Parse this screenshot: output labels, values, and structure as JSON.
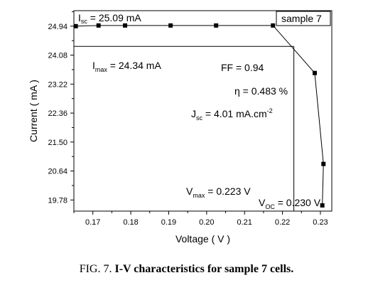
{
  "chart_data": {
    "type": "line",
    "xlabel": "Voltage ( V )",
    "ylabel": "Current ( mA )",
    "xlim": [
      0.165,
      0.233
    ],
    "ylim": [
      19.45,
      25.4
    ],
    "xticks": [
      0.17,
      0.18,
      0.19,
      0.2,
      0.21,
      0.22,
      0.23
    ],
    "xtick_labels": [
      "0.17",
      "0.18",
      "0.19",
      "0.20",
      "0.21",
      "0.22",
      "0.23"
    ],
    "yticks": [
      19.78,
      20.64,
      21.5,
      22.36,
      23.22,
      24.08,
      24.94
    ],
    "ytick_labels": [
      "19.78",
      "20.64",
      "21.50",
      "22.36",
      "23.22",
      "24.08",
      "24.94"
    ],
    "series": [
      {
        "x": [
          0.1655,
          0.1715,
          0.1785,
          0.1905,
          0.2025,
          0.2175,
          0.2285,
          0.2308,
          0.2305
        ],
        "y": [
          24.94,
          24.96,
          24.96,
          24.96,
          24.96,
          24.96,
          23.55,
          20.85,
          19.62
        ]
      }
    ],
    "max_power_point": {
      "v": 0.223,
      "i": 24.34
    },
    "legend": "sample 7",
    "annotations": {
      "isc": {
        "main": "I",
        "sub": "sc",
        "rest": " = 25.09 mA"
      },
      "imax": {
        "main": "I",
        "sub": "max",
        "rest": " = 24.34 mA"
      },
      "ff": "FF = 0.94",
      "eta": "η = 0.483 %",
      "jsc": {
        "main": "J",
        "sub": "sc",
        "rest": " = 4.01 mA.cm",
        "sup": "-2"
      },
      "vmax": {
        "main": "V",
        "sub": "max",
        "rest": " = 0.223 V"
      },
      "voc": {
        "main": "V",
        "sub": "OC",
        "rest": " = 0.230 V"
      }
    }
  },
  "caption": {
    "prefix": "FIG. 7. ",
    "bold": "I-V characteristics for sample 7 cells."
  }
}
